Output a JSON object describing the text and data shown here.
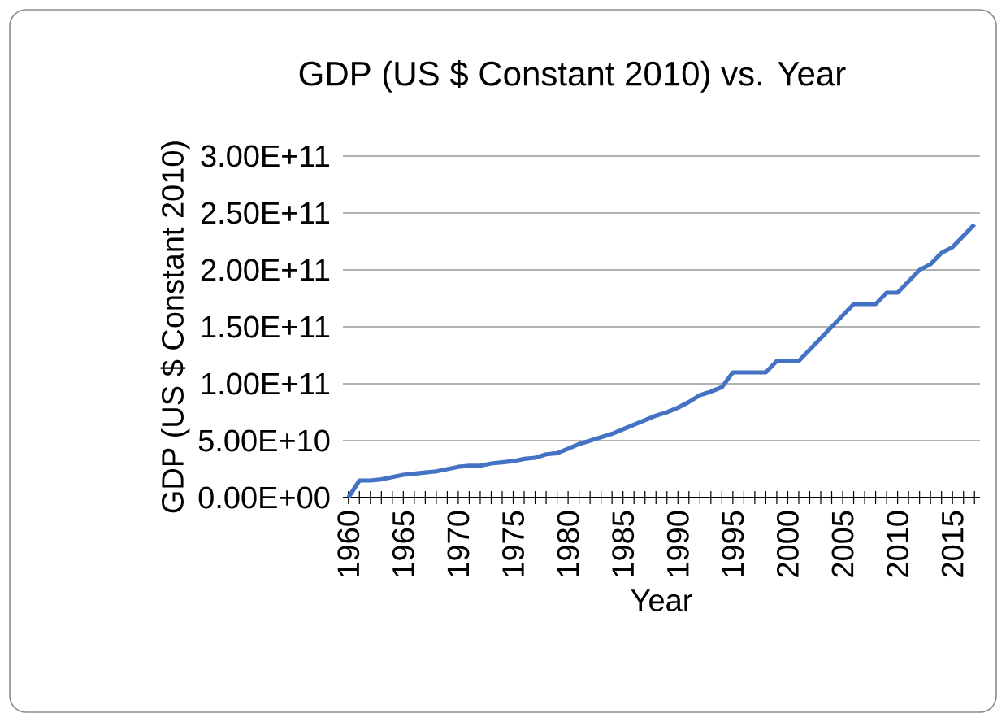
{
  "chart_data": {
    "type": "line",
    "title": "GDP (US $ Constant 2010) vs. Year",
    "xlabel": "Year",
    "ylabel": "GDP (US $ Constant 2010)",
    "categories": [
      "1960",
      null,
      null,
      null,
      null,
      "1965",
      null,
      null,
      null,
      null,
      "1970",
      null,
      null,
      null,
      null,
      "1975",
      null,
      null,
      null,
      null,
      "1980",
      null,
      null,
      null,
      null,
      "1985",
      null,
      null,
      null,
      null,
      "1990",
      null,
      null,
      null,
      null,
      "1995",
      null,
      null,
      null,
      null,
      "2000",
      null,
      null,
      null,
      null,
      "2005",
      null,
      null,
      null,
      null,
      "2010",
      null,
      null,
      null,
      null,
      "2015",
      null,
      null
    ],
    "series": [
      {
        "color": "#4472c4",
        "values": [
          0,
          15000000000.0,
          15000000000.0,
          16000000000.0,
          18000000000.0,
          20000000000.0,
          21000000000.0,
          22000000000.0,
          23000000000.0,
          25000000000.0,
          27000000000.0,
          28000000000.0,
          28000000000.0,
          30000000000.0,
          31000000000.0,
          32000000000.0,
          34000000000.0,
          35000000000.0,
          38000000000.0,
          39000000000.0,
          43000000000.0,
          47000000000.0,
          50000000000.0,
          53000000000.0,
          56000000000.0,
          60000000000.0,
          64000000000.0,
          68000000000.0,
          72000000000.0,
          75000000000.0,
          79000000000.0,
          84000000000.0,
          90000000000.0,
          93000000000.0,
          97000000000.0,
          110000000000.0,
          110000000000.0,
          110000000000.0,
          110000000000.0,
          120000000000.0,
          120000000000.0,
          120000000000.0,
          130000000000.0,
          140000000000.0,
          150000000000.0,
          160000000000.0,
          170000000000.0,
          170000000000.0,
          170000000000.0,
          180000000000.0,
          180000000000.0,
          190000000000.0,
          200000000000.0,
          205000000000.0,
          215000000000.0,
          220000000000.0,
          230000000000.0,
          240000000000.0
        ]
      }
    ],
    "ylim": [
      0,
      300000000000.0
    ],
    "yticks": [
      {
        "value": 0,
        "label": "0.00E+00"
      },
      {
        "value": 50000000000.0,
        "label": "5.00E+10"
      },
      {
        "value": 100000000000.0,
        "label": "1.00E+11"
      },
      {
        "value": 150000000000.0,
        "label": "1.50E+11"
      },
      {
        "value": 200000000000.0,
        "label": "2.00E+11"
      },
      {
        "value": 250000000000.0,
        "label": "2.50E+11"
      },
      {
        "value": 300000000000.0,
        "label": "3.00E+11"
      }
    ],
    "grid": "y",
    "marker": "none",
    "line_style": "solid"
  }
}
